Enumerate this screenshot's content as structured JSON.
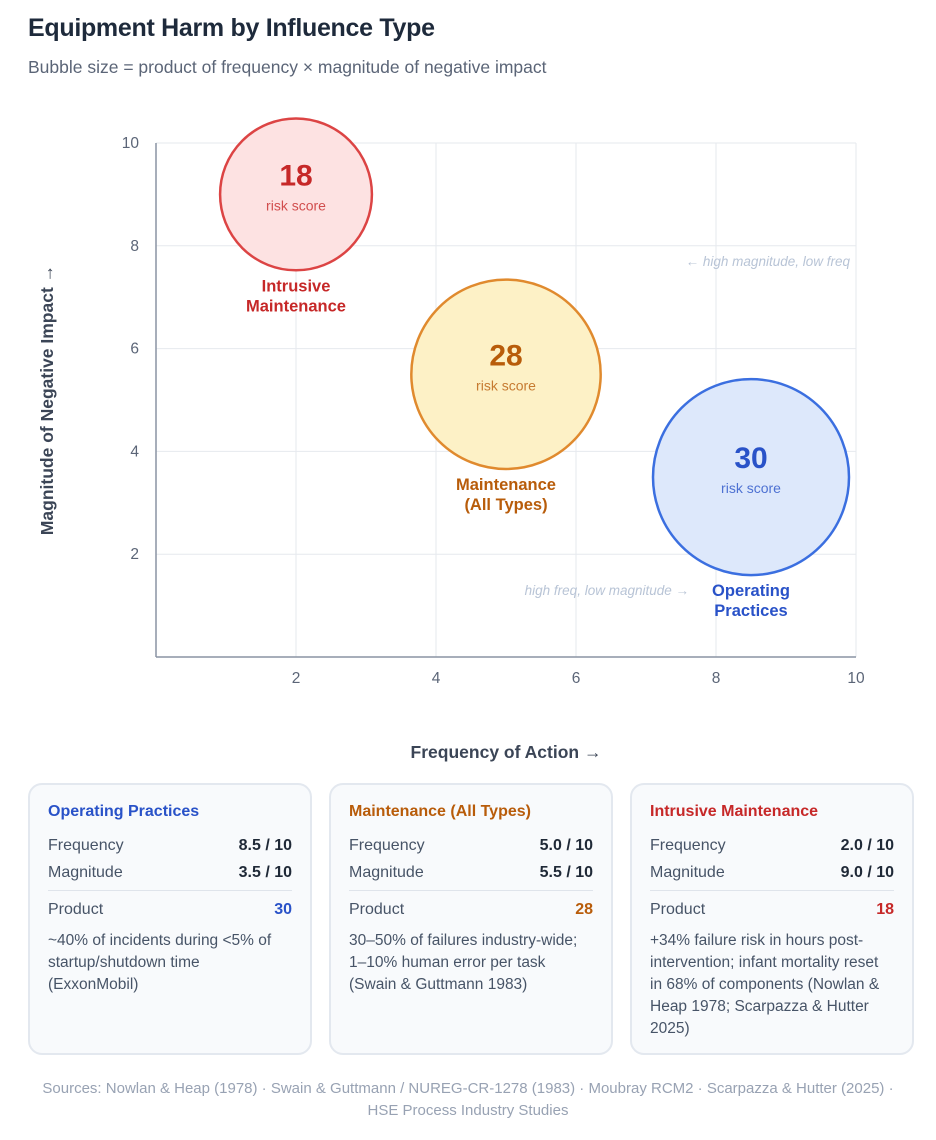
{
  "header": {
    "title": "Equipment Harm by Influence Type",
    "subtitle": "Bubble size = product of frequency × magnitude of negative impact"
  },
  "chart_data": {
    "type": "scatter",
    "title": "Equipment Harm by Influence Type",
    "subtitle": "Bubble size = product of frequency × magnitude of negative impact",
    "xlabel": "Frequency of Action →",
    "ylabel": "Magnitude of Negative Impact →",
    "xlim": [
      0,
      10
    ],
    "ylim": [
      0,
      10
    ],
    "xticks": [
      "2",
      "4",
      "6",
      "8",
      "10"
    ],
    "yticks": [
      "2",
      "4",
      "6",
      "8",
      "10"
    ],
    "grid": true,
    "bubble_caption": "risk score",
    "series": [
      {
        "label": "Intrusive Maintenance",
        "label_lines": [
          "Intrusive",
          "Maintenance"
        ],
        "x": 2.0,
        "y": 9.0,
        "size": 18,
        "color": "#c62828",
        "fill": "#fde2e2",
        "stroke": "#dc4444"
      },
      {
        "label": "Maintenance (All Types)",
        "label_lines": [
          "Maintenance",
          "(All Types)"
        ],
        "x": 5.0,
        "y": 5.5,
        "size": 28,
        "color": "#b85c0a",
        "fill": "#fdf1c6",
        "stroke": "#e08a2e"
      },
      {
        "label": "Operating Practices",
        "label_lines": [
          "Operating",
          "Practices"
        ],
        "x": 8.5,
        "y": 3.5,
        "size": 30,
        "color": "#2952c8",
        "fill": "#dde8fb",
        "stroke": "#3b6fe0"
      }
    ],
    "annotations": [
      {
        "text": "← high magnitude, low freq",
        "x": 10,
        "y": 7.7,
        "anchor": "end"
      },
      {
        "text": "high freq, low magnitude →",
        "x": 7.7,
        "y": 1.3,
        "anchor": "end"
      }
    ]
  },
  "cards": [
    {
      "title": "Operating Practices",
      "color": "#2952c8",
      "frequency_label": "Frequency",
      "frequency": "8.5 / 10",
      "magnitude_label": "Magnitude",
      "magnitude": "3.5 / 10",
      "product_label": "Product",
      "product": "30",
      "note": "~40% of incidents during <5% of startup/shutdown time (ExxonMobil)"
    },
    {
      "title": "Maintenance (All Types)",
      "color": "#b85c0a",
      "frequency_label": "Frequency",
      "frequency": "5.0 / 10",
      "magnitude_label": "Magnitude",
      "magnitude": "5.5 / 10",
      "product_label": "Product",
      "product": "28",
      "note": "30–50% of failures industry-wide; 1–10% human error per task (Swain & Guttmann 1983)"
    },
    {
      "title": "Intrusive Maintenance",
      "color": "#c62828",
      "frequency_label": "Frequency",
      "frequency": "2.0 / 10",
      "magnitude_label": "Magnitude",
      "magnitude": "9.0 / 10",
      "product_label": "Product",
      "product": "18",
      "note": "+34% failure risk in hours post-intervention; infant mortality reset in 68% of components (Nowlan & Heap 1978; Scarpazza & Hutter 2025)"
    }
  ],
  "footer": {
    "sources": "Sources: Nowlan & Heap (1978) · Swain & Guttmann / NUREG-CR-1278 (1983) · Moubray RCM2 · Scarpazza & Hutter (2025) · HSE Process Industry Studies"
  }
}
